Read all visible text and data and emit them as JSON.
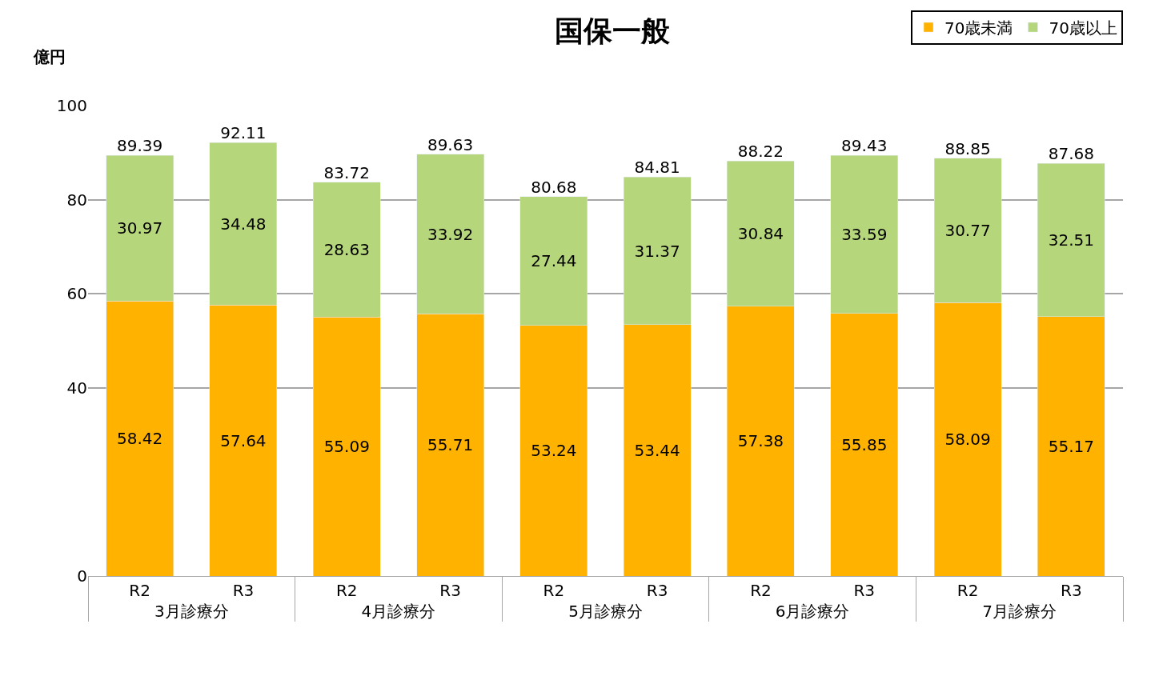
{
  "chart_data": {
    "type": "bar",
    "title": "国保一般",
    "ylabel": "億円",
    "categories": [
      "R2",
      "R3",
      "R2",
      "R3",
      "R2",
      "R3",
      "R2",
      "R3",
      "R2",
      "R3"
    ],
    "annotations": [
      "3月診療分",
      "4月診療分",
      "5月診療分",
      "6月診療分",
      "7月診療分"
    ],
    "series": [
      {
        "name": "70歳未満",
        "color": "#ffb300",
        "values": [
          58.42,
          57.64,
          55.09,
          55.71,
          53.24,
          53.44,
          57.38,
          55.85,
          58.09,
          55.17
        ]
      },
      {
        "name": "70歳以上",
        "color": "#b5d67a",
        "values": [
          30.97,
          34.48,
          28.63,
          33.92,
          27.44,
          31.37,
          30.84,
          33.59,
          30.77,
          32.51
        ]
      }
    ],
    "stacked": true,
    "data_labels": true,
    "totals": [
      "89.39",
      "92.11",
      "83.72",
      "89.63",
      "80.68",
      "84.81",
      "88.22",
      "89.43",
      "88.85",
      "87.68"
    ],
    "ylim": [
      0,
      100
    ],
    "yticks": [
      0,
      40,
      60,
      80,
      100
    ],
    "grid": "y",
    "legend": "top right"
  }
}
